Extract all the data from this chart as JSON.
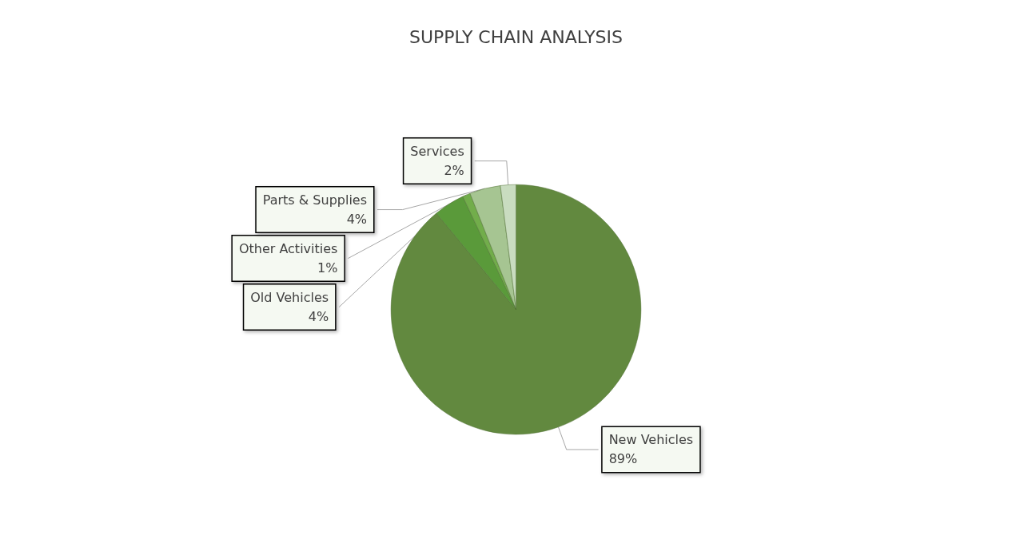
{
  "chart_data": {
    "type": "pie",
    "title": "SUPPLY CHAIN ANALYSIS",
    "categories": [
      "New Vehicles",
      "Old Vehicles",
      "Other Activities",
      "Parts & Supplies",
      "Services"
    ],
    "values": [
      89,
      4,
      1,
      4,
      2
    ],
    "value_labels": [
      "89%",
      "4%",
      "1%",
      "4%",
      "2%"
    ],
    "colors": [
      "#62893f",
      "#5a9a3a",
      "#72ad4b",
      "#a6c592",
      "#c9dcc0"
    ],
    "legend": false
  }
}
